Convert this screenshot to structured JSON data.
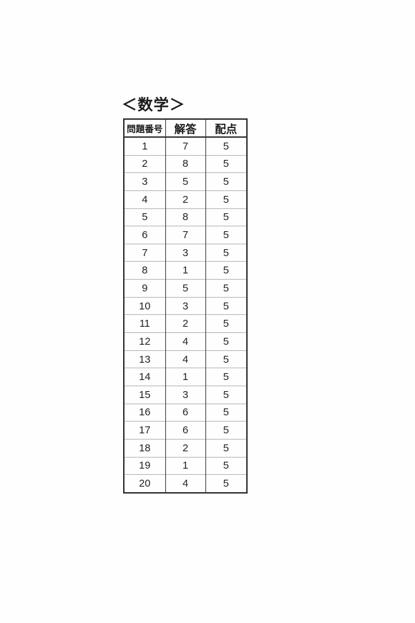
{
  "title": "＜数学＞",
  "table": {
    "headers": [
      "問題番号",
      "解答",
      "配点"
    ],
    "rows": [
      {
        "number": "1",
        "answer": "7",
        "points": "5"
      },
      {
        "number": "2",
        "answer": "8",
        "points": "5"
      },
      {
        "number": "3",
        "answer": "5",
        "points": "5"
      },
      {
        "number": "4",
        "answer": "2",
        "points": "5"
      },
      {
        "number": "5",
        "answer": "8",
        "points": "5"
      },
      {
        "number": "6",
        "answer": "7",
        "points": "5"
      },
      {
        "number": "7",
        "answer": "3",
        "points": "5"
      },
      {
        "number": "8",
        "answer": "1",
        "points": "5"
      },
      {
        "number": "9",
        "answer": "5",
        "points": "5"
      },
      {
        "number": "10",
        "answer": "3",
        "points": "5"
      },
      {
        "number": "11",
        "answer": "2",
        "points": "5"
      },
      {
        "number": "12",
        "answer": "4",
        "points": "5"
      },
      {
        "number": "13",
        "answer": "4",
        "points": "5"
      },
      {
        "number": "14",
        "answer": "1",
        "points": "5"
      },
      {
        "number": "15",
        "answer": "3",
        "points": "5"
      },
      {
        "number": "16",
        "answer": "6",
        "points": "5"
      },
      {
        "number": "17",
        "answer": "6",
        "points": "5"
      },
      {
        "number": "18",
        "answer": "2",
        "points": "5"
      },
      {
        "number": "19",
        "answer": "1",
        "points": "5"
      },
      {
        "number": "20",
        "answer": "4",
        "points": "5"
      }
    ]
  }
}
